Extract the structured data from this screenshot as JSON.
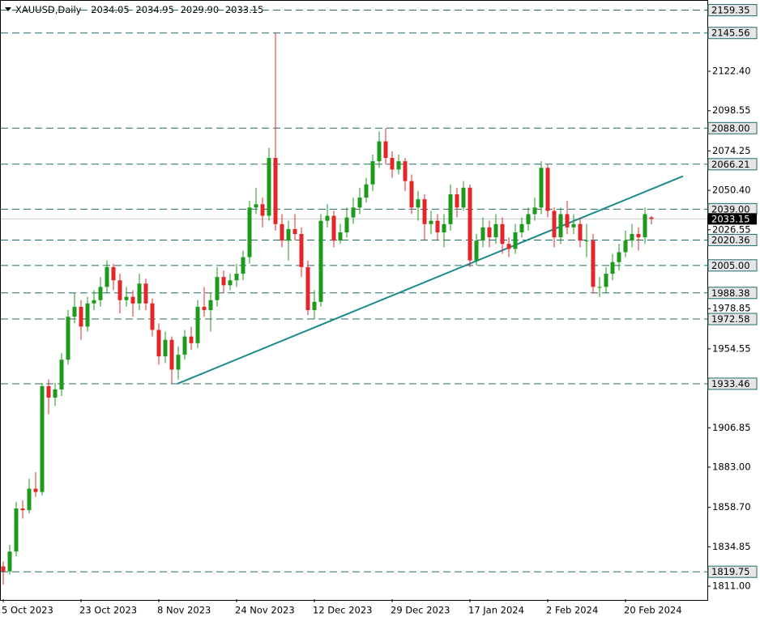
{
  "chart_data": {
    "type": "candlestick",
    "header": {
      "symbol": "XAUUSD,Daily",
      "ohlc": [
        "2034.05",
        "2034.95",
        "2029.90",
        "2033.15"
      ]
    },
    "categories": [
      "5 Oct 2023",
      null,
      null,
      null,
      null,
      null,
      null,
      null,
      null,
      null,
      null,
      null,
      "23 Oct 2023",
      null,
      null,
      null,
      null,
      null,
      null,
      null,
      null,
      null,
      null,
      null,
      "8 Nov 2023",
      null,
      null,
      null,
      null,
      null,
      null,
      null,
      null,
      null,
      null,
      null,
      "24 Nov 2023",
      null,
      null,
      null,
      null,
      null,
      null,
      null,
      null,
      null,
      null,
      null,
      "12 Dec 2023",
      null,
      null,
      null,
      null,
      null,
      null,
      null,
      null,
      null,
      null,
      null,
      "29 Dec 2023",
      null,
      null,
      null,
      null,
      null,
      null,
      null,
      null,
      null,
      null,
      null,
      "17 Jan 2024",
      null,
      null,
      null,
      null,
      null,
      null,
      null,
      null,
      null,
      null,
      null,
      "2 Feb 2024",
      null,
      null,
      null,
      null,
      null,
      null,
      null,
      null,
      null,
      null,
      null,
      "20 Feb 2024",
      null,
      null,
      null,
      null
    ],
    "open": [
      1823,
      1820,
      1832,
      1858,
      1857,
      1870,
      1868,
      1932,
      1925,
      1930,
      1948,
      1974,
      1980,
      1968,
      1982,
      1984,
      1992,
      2004,
      1996,
      1984,
      1986,
      1982,
      1994,
      1982,
      1966,
      1950,
      1960,
      1942,
      1951,
      1962,
      1958,
      1980,
      1978,
      1984,
      1998,
      1993,
      1996,
      2000,
      2010,
      2040,
      2042,
      2035,
      2070,
      2030,
      2020,
      2027,
      2024,
      2004,
      1978,
      1983,
      2032,
      2035,
      2020,
      2025,
      2034,
      2040,
      2046,
      2054,
      2068,
      2080,
      2070,
      2063,
      2068,
      2056,
      2040,
      2045,
      2030,
      2032,
      2025,
      2030,
      2048,
      2040,
      2052,
      2008,
      2020,
      2028,
      2022,
      2030,
      2018,
      2015,
      2025,
      2030,
      2036,
      2040,
      2064,
      2038,
      2022,
      2036,
      2028,
      2030,
      2020,
      2020,
      1992,
      1992,
      2000,
      2007,
      2013,
      2020,
      2024,
      2022,
      2034.05
    ],
    "high": [
      1826,
      1836,
      1862,
      1863,
      1876,
      1880,
      1934,
      1936,
      1934,
      1952,
      1978,
      1988,
      1984,
      1986,
      1990,
      1998,
      2008,
      2006,
      2000,
      1992,
      1990,
      2000,
      1997,
      1985,
      1970,
      1965,
      1962,
      1956,
      1966,
      1968,
      1984,
      1992,
      1988,
      2004,
      2002,
      2000,
      2006,
      2014,
      2044,
      2052,
      2046,
      2076,
      2145.56,
      2036,
      2032,
      2036,
      2028,
      2008,
      1990,
      2036,
      2042,
      2038,
      2030,
      2040,
      2046,
      2052,
      2058,
      2072,
      2086,
      2088,
      2074,
      2072,
      2070,
      2060,
      2050,
      2048,
      2038,
      2036,
      2036,
      2054,
      2052,
      2056,
      2054,
      2024,
      2034,
      2032,
      2036,
      2034,
      2022,
      2030,
      2034,
      2040,
      2046,
      2068,
      2066,
      2040,
      2040,
      2044,
      2036,
      2034,
      2030,
      2024,
      1998,
      2004,
      2012,
      2018,
      2026,
      2030,
      2028,
      2040,
      2034.95
    ],
    "low": [
      1812,
      1818,
      1829,
      1852,
      1855,
      1865,
      1866,
      1915,
      1920,
      1926,
      1945,
      1970,
      1960,
      1965,
      1978,
      1980,
      1988,
      1990,
      1976,
      1980,
      1974,
      1978,
      1978,
      1962,
      1945,
      1946,
      1933.46,
      1936,
      1948,
      1954,
      1955,
      1974,
      1965,
      1980,
      1988,
      1990,
      1992,
      1996,
      2006,
      2036,
      2028,
      2032,
      2026,
      2016,
      2008,
      2020,
      1998,
      1975,
      1972.58,
      1980,
      2028,
      2016,
      2018,
      2022,
      2030,
      2036,
      2043,
      2050,
      2064,
      2066,
      2058,
      2060,
      2050,
      2036,
      2032,
      2020,
      2024,
      2020,
      2016,
      2026,
      2034,
      2038,
      2004,
      2005,
      2016,
      2016,
      2018,
      2012,
      2010,
      2012,
      2022,
      2026,
      2032,
      2036,
      2034,
      2016,
      2018,
      2024,
      2024,
      2016,
      2010,
      1988,
      1986,
      1988,
      1996,
      2002,
      2010,
      2016,
      2014,
      2018,
      2029.9
    ],
    "close": [
      1820,
      1832,
      1858,
      1857,
      1870,
      1868,
      1932,
      1925,
      1930,
      1948,
      1974,
      1980,
      1968,
      1982,
      1984,
      1992,
      2004,
      1996,
      1984,
      1986,
      1982,
      1994,
      1982,
      1966,
      1950,
      1960,
      1942,
      1951,
      1962,
      1958,
      1980,
      1978,
      1984,
      1998,
      1993,
      1996,
      2000,
      2010,
      2040,
      2042,
      2035,
      2070,
      2030,
      2020,
      2027,
      2024,
      2004,
      1978,
      1983,
      2032,
      2035,
      2020,
      2025,
      2034,
      2040,
      2046,
      2054,
      2068,
      2080,
      2070,
      2063,
      2068,
      2056,
      2040,
      2045,
      2030,
      2032,
      2025,
      2030,
      2048,
      2040,
      2052,
      2008,
      2020,
      2028,
      2022,
      2030,
      2018,
      2015,
      2025,
      2030,
      2036,
      2040,
      2064,
      2038,
      2022,
      2036,
      2028,
      2030,
      2020,
      2020,
      1992,
      1992,
      2000,
      2007,
      2013,
      2020,
      2024,
      2022,
      2036,
      2033.15
    ],
    "bull_color": "#1e9a1e",
    "bear_color": "#e3262a",
    "ylim": [
      1803.2,
      2165.5
    ],
    "yticks": [
      {
        "value": 2122.4,
        "label": "2122.40"
      },
      {
        "value": 2098.55,
        "label": "2098.55"
      },
      {
        "value": 2074.25,
        "label": "2074.25"
      },
      {
        "value": 2050.4,
        "label": "2050.40"
      },
      {
        "value": 2026.55,
        "label": "2026.55"
      },
      {
        "value": 1978.85,
        "label": "1978.85"
      },
      {
        "value": 1954.55,
        "label": "1954.55"
      },
      {
        "value": 1906.85,
        "label": "1906.85"
      },
      {
        "value": 1883,
        "label": "1883.00"
      },
      {
        "value": 1858.7,
        "label": "1858.70"
      },
      {
        "value": 1834.85,
        "label": "1834.85"
      },
      {
        "value": 1811,
        "label": "1811.00"
      }
    ],
    "levels": {
      "values": [
        2159.35,
        2145.56,
        2088,
        2066.21,
        2039,
        2020.36,
        2005,
        1988.38,
        1972.58,
        1933.46,
        1819.75
      ],
      "value_labels": [
        "2159.35",
        "2145.56",
        "2088.00",
        "2066.21",
        "2039.00",
        "2020.36",
        "2005.00",
        "1988.38",
        "1972.58",
        "1933.46",
        "1819.75"
      ],
      "color": "#1f6b6b"
    },
    "last_price": 2033.15,
    "trendline": {
      "values": [
        1933.46,
        2059
      ],
      "color": "#1a8a8a"
    }
  }
}
